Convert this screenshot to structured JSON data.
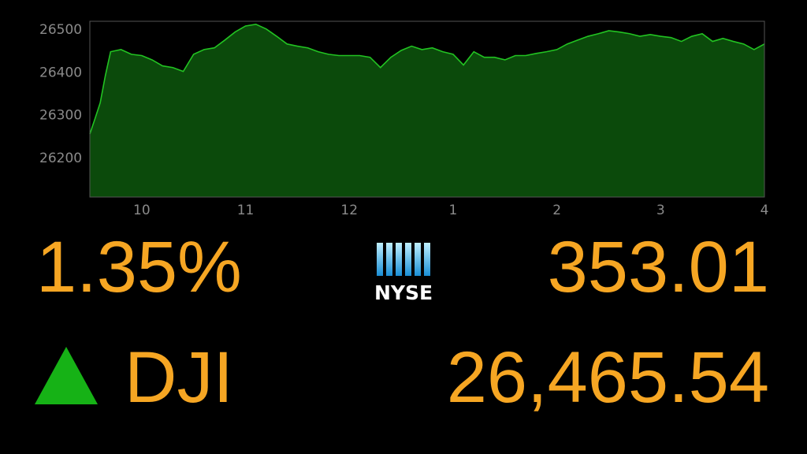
{
  "chart_data": {
    "type": "area",
    "color": "#22c322",
    "fill": "#0b4a0b",
    "x": [
      9.5,
      9.55,
      9.6,
      9.65,
      9.7,
      9.8,
      9.9,
      10.0,
      10.1,
      10.2,
      10.3,
      10.4,
      10.5,
      10.6,
      10.7,
      10.8,
      10.9,
      11.0,
      11.1,
      11.2,
      11.3,
      11.4,
      11.5,
      11.6,
      11.7,
      11.8,
      11.9,
      12.0,
      12.1,
      12.2,
      12.3,
      12.4,
      12.5,
      12.6,
      12.7,
      12.8,
      12.9,
      13.0,
      13.1,
      13.2,
      13.3,
      13.4,
      13.5,
      13.6,
      13.7,
      13.8,
      13.9,
      14.0,
      14.1,
      14.2,
      14.3,
      14.4,
      14.5,
      14.6,
      14.7,
      14.8,
      14.9,
      15.0,
      15.1,
      15.2,
      15.3,
      15.4,
      15.5,
      15.6,
      15.7,
      15.8,
      15.9,
      16.0
    ],
    "values": [
      26257,
      26293,
      26330,
      26394,
      26449,
      26454,
      26443,
      26440,
      26430,
      26416,
      26412,
      26403,
      26443,
      26454,
      26458,
      26476,
      26495,
      26509,
      26513,
      26502,
      26485,
      26467,
      26462,
      26458,
      26449,
      26443,
      26440,
      26440,
      26440,
      26436,
      26412,
      26436,
      26452,
      26462,
      26454,
      26458,
      26449,
      26443,
      26418,
      26449,
      26436,
      26436,
      26430,
      26440,
      26440,
      26445,
      26449,
      26454,
      26467,
      26476,
      26485,
      26491,
      26498,
      26495,
      26491,
      26485,
      26489,
      26485,
      26482,
      26473,
      26485,
      26491,
      26473,
      26480,
      26473,
      26467,
      26454,
      26467
    ],
    "xlim": [
      9.5,
      16
    ],
    "ylim": [
      26110,
      26520
    ],
    "xticks": [
      10,
      11,
      12,
      {
        "value": 13,
        "label": "1"
      },
      {
        "value": 14,
        "label": "2"
      },
      {
        "value": 15,
        "label": "3"
      },
      {
        "value": 16,
        "label": "4"
      }
    ],
    "yticks": [
      26200,
      26300,
      26400,
      26500
    ]
  },
  "ticker": {
    "percent_change": "1.35%",
    "logo": "NYSE",
    "point_change": "353.01",
    "symbol": "DJI",
    "price": "26,465.54"
  }
}
